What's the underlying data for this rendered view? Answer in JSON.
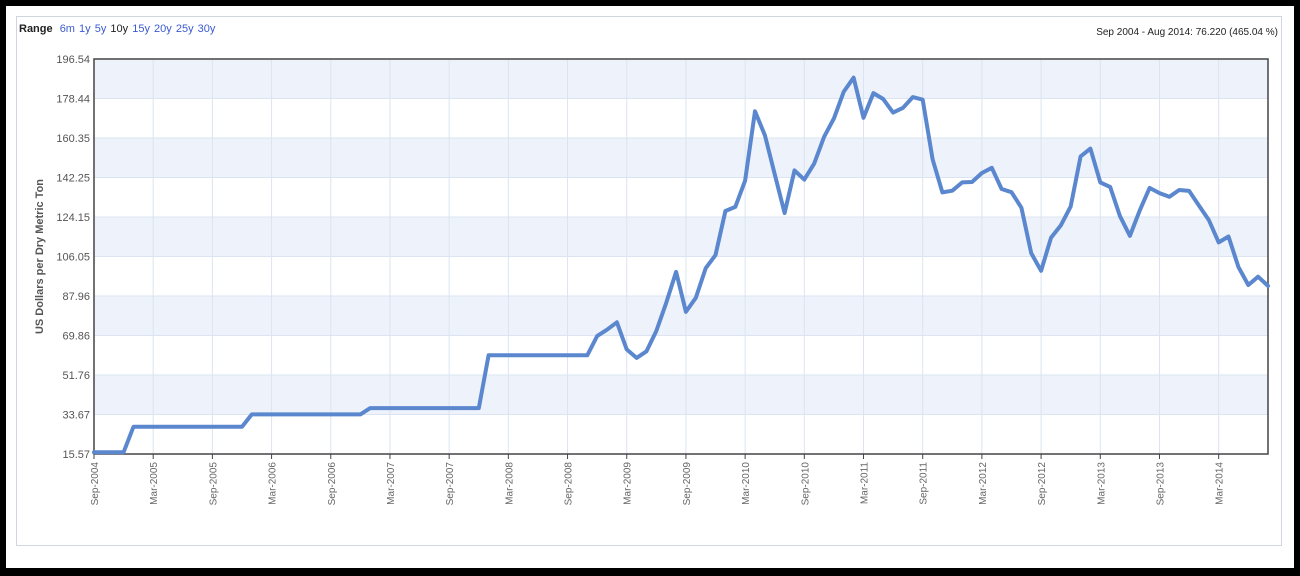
{
  "range": {
    "title": "Range",
    "options": [
      "6m",
      "1y",
      "5y",
      "10y",
      "15y",
      "20y",
      "25y",
      "30y"
    ],
    "active": "10y"
  },
  "range_label": "Sep 2004 - Aug 2014: 76.220 (465.04 %)",
  "colors": {
    "line": "#5b87cf",
    "band": "#eef3fb",
    "grid": "#dbe4f0",
    "axis": "#444444"
  },
  "chart_data": {
    "type": "line",
    "ylabel": "US Dollars per Dry Metric Ton",
    "ylim": [
      15.57,
      196.54
    ],
    "ytick_labels": [
      "196.54",
      "178.44",
      "160.35",
      "142.25",
      "124.15",
      "106.05",
      "87.96",
      "69.86",
      "51.76",
      "33.67",
      "15.57"
    ],
    "xtick_labels": [
      "Sep-2004",
      "Mar-2005",
      "Sep-2005",
      "Mar-2006",
      "Sep-2006",
      "Mar-2007",
      "Sep-2007",
      "Mar-2008",
      "Sep-2008",
      "Mar-2009",
      "Sep-2009",
      "Mar-2010",
      "Sep-2010",
      "Mar-2011",
      "Sep-2011",
      "Mar-2012",
      "Sep-2012",
      "Mar-2013",
      "Sep-2013",
      "Mar-2014"
    ],
    "grid": true,
    "series": [
      {
        "x": [
          "2004-09",
          "2004-10",
          "2004-11",
          "2004-12",
          "2005-01",
          "2005-02",
          "2005-03",
          "2005-04",
          "2005-05",
          "2005-06",
          "2005-07",
          "2005-08",
          "2005-09",
          "2005-10",
          "2005-11",
          "2005-12",
          "2006-01",
          "2006-02",
          "2006-03",
          "2006-04",
          "2006-05",
          "2006-06",
          "2006-07",
          "2006-08",
          "2006-09",
          "2006-10",
          "2006-11",
          "2006-12",
          "2007-01",
          "2007-02",
          "2007-03",
          "2007-04",
          "2007-05",
          "2007-06",
          "2007-07",
          "2007-08",
          "2007-09",
          "2007-10",
          "2007-11",
          "2007-12",
          "2008-01",
          "2008-02",
          "2008-03",
          "2008-04",
          "2008-05",
          "2008-06",
          "2008-07",
          "2008-08",
          "2008-09",
          "2008-10",
          "2008-11",
          "2008-12",
          "2009-01",
          "2009-02",
          "2009-03",
          "2009-04",
          "2009-05",
          "2009-06",
          "2009-07",
          "2009-08",
          "2009-09",
          "2009-10",
          "2009-11",
          "2009-12",
          "2010-01",
          "2010-02",
          "2010-03",
          "2010-04",
          "2010-05",
          "2010-06",
          "2010-07",
          "2010-08",
          "2010-09",
          "2010-10",
          "2010-11",
          "2010-12",
          "2011-01",
          "2011-02",
          "2011-03",
          "2011-04",
          "2011-05",
          "2011-06",
          "2011-07",
          "2011-08",
          "2011-09",
          "2011-10",
          "2011-11",
          "2011-12",
          "2012-01",
          "2012-02",
          "2012-03",
          "2012-04",
          "2012-05",
          "2012-06",
          "2012-07",
          "2012-08",
          "2012-09",
          "2012-10",
          "2012-11",
          "2012-12",
          "2013-01",
          "2013-02",
          "2013-03",
          "2013-04",
          "2013-05",
          "2013-06",
          "2013-07",
          "2013-08",
          "2013-09",
          "2013-10",
          "2013-11",
          "2013-12",
          "2014-01",
          "2014-02",
          "2014-03",
          "2014-04",
          "2014-05",
          "2014-06",
          "2014-07",
          "2014-08"
        ],
        "values": [
          16.4,
          16.4,
          16.4,
          16.4,
          28.1,
          28.1,
          28.1,
          28.1,
          28.1,
          28.1,
          28.1,
          28.1,
          28.1,
          28.1,
          28.1,
          28.1,
          33.7,
          33.7,
          33.7,
          33.7,
          33.7,
          33.7,
          33.7,
          33.7,
          33.7,
          33.7,
          33.7,
          33.7,
          36.6,
          36.6,
          36.6,
          36.6,
          36.6,
          36.6,
          36.6,
          36.6,
          36.6,
          36.6,
          36.6,
          36.6,
          60.8,
          60.8,
          60.8,
          60.8,
          60.8,
          60.8,
          60.8,
          60.8,
          60.8,
          60.8,
          60.8,
          69.6,
          72.5,
          75.9,
          63.5,
          59.6,
          62.6,
          71.9,
          84.8,
          99.0,
          80.7,
          87.1,
          100.7,
          106.7,
          126.9,
          128.8,
          140.8,
          172.6,
          161.6,
          143.8,
          126.0,
          145.5,
          141.3,
          148.6,
          160.9,
          169.3,
          181.6,
          188.0,
          169.6,
          180.9,
          178.2,
          172.0,
          174.2,
          179.1,
          177.9,
          150.6,
          135.4,
          136.2,
          140.0,
          140.2,
          144.3,
          146.7,
          137.0,
          135.5,
          128.4,
          107.6,
          99.5,
          114.6,
          120.3,
          129.0,
          151.9,
          155.5,
          140.0,
          137.9,
          124.5,
          115.5,
          127.1,
          137.5,
          135.1,
          133.4,
          136.5,
          136.1,
          129.4,
          122.8,
          112.5,
          115.2,
          101.3,
          93.0,
          96.8,
          92.6
        ]
      }
    ]
  }
}
